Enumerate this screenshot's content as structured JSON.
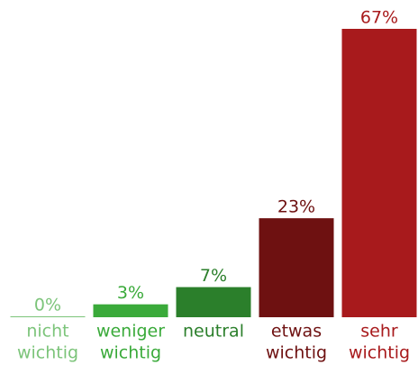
{
  "chart_data": {
    "type": "bar",
    "categories": [
      [
        "nicht",
        "wichtig"
      ],
      [
        "weniger",
        "wichtig"
      ],
      [
        "neutral"
      ],
      [
        "etwas",
        "wichtig"
      ],
      [
        "sehr",
        "wichtig"
      ]
    ],
    "values": [
      0,
      3,
      7,
      23,
      67
    ],
    "value_labels": [
      "0%",
      "3%",
      "7%",
      "23%",
      "67%"
    ],
    "colors": [
      "#7cc47a",
      "#3aaa3a",
      "#2b7f2b",
      "#6e1111",
      "#a81a1c"
    ]
  }
}
